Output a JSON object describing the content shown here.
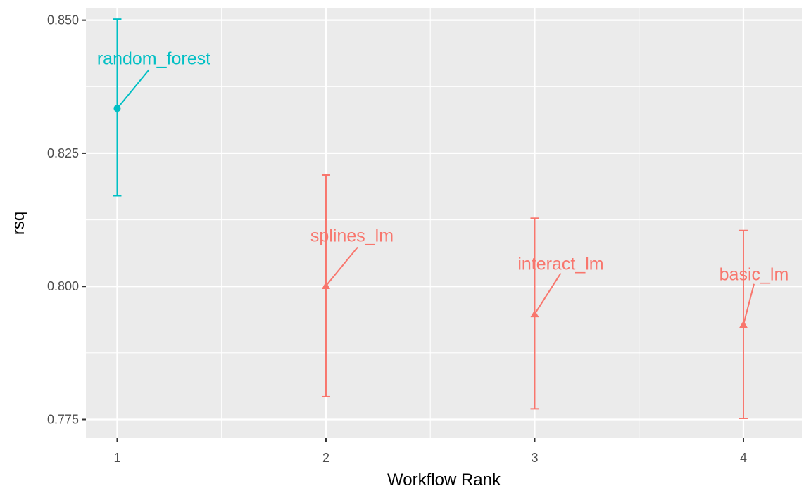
{
  "chart_data": {
    "type": "scatter",
    "title": "",
    "xlabel": "Workflow Rank",
    "ylabel": "rsq",
    "xlim": [
      0.85,
      4.28
    ],
    "ylim": [
      0.7715,
      0.8522
    ],
    "x_ticks": [
      1,
      2,
      3,
      4
    ],
    "x_tick_labels": [
      "1",
      "2",
      "3",
      "4"
    ],
    "y_ticks": [
      0.775,
      0.8,
      0.825,
      0.85
    ],
    "y_tick_labels": [
      "0.775",
      "0.800",
      "0.825",
      "0.850"
    ],
    "grid": true,
    "legend": "none",
    "panel_background": "#ebebeb",
    "points": [
      {
        "rank": 1,
        "label": "random_forest",
        "mean": 0.8334,
        "lower": 0.817,
        "upper": 0.8502,
        "color": "#00bfc4",
        "shape": "circle"
      },
      {
        "rank": 2,
        "label": "splines_lm",
        "mean": 0.8001,
        "lower": 0.7793,
        "upper": 0.8209,
        "color": "#f8766d",
        "shape": "triangle"
      },
      {
        "rank": 3,
        "label": "interact_lm",
        "mean": 0.7948,
        "lower": 0.777,
        "upper": 0.8128,
        "color": "#f8766d",
        "shape": "triangle"
      },
      {
        "rank": 4,
        "label": "basic_lm",
        "mean": 0.7928,
        "lower": 0.7752,
        "upper": 0.8105,
        "color": "#f8766d",
        "shape": "triangle"
      }
    ]
  }
}
